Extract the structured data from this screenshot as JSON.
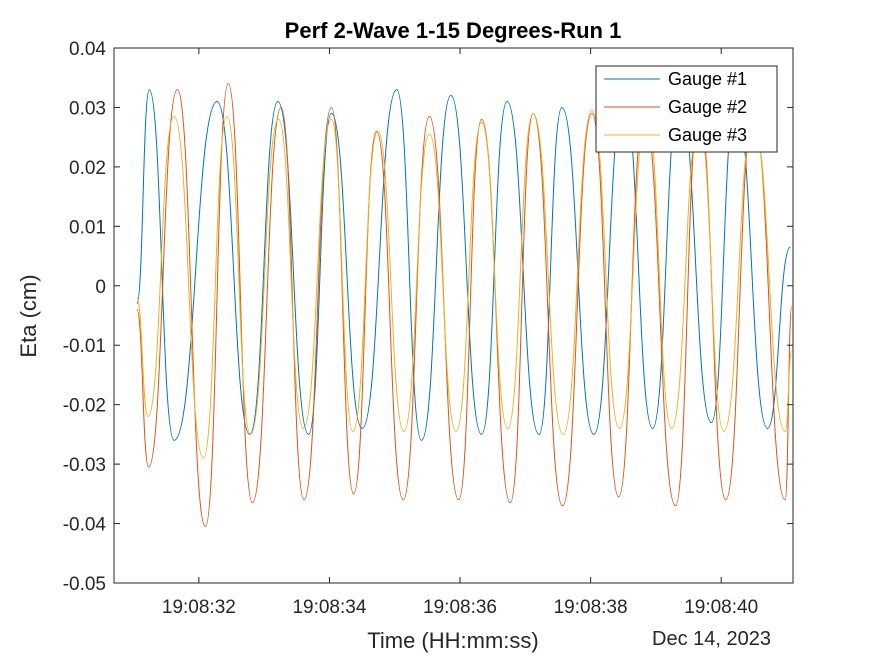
{
  "chart_data": {
    "type": "line",
    "title": "Perf 2-Wave 1-15 Degrees-Run 1",
    "xlabel": "Time (HH:mm:ss)",
    "ylabel": "Eta (cm)",
    "date_label": "Dec 14, 2023",
    "x_range": [
      "19:08:30.7",
      "19:08:41.1"
    ],
    "x_ticks": [
      "19:08:32",
      "19:08:34",
      "19:08:36",
      "19:08:38",
      "19:08:40"
    ],
    "y_ticks": [
      "-0.05",
      "-0.04",
      "-0.03",
      "-0.02",
      "-0.01",
      "0",
      "0.01",
      "0.02",
      "0.03",
      "0.04"
    ],
    "ylim": [
      -0.05,
      0.04
    ],
    "grid": false,
    "legend_position": "top-right",
    "series": [
      {
        "name": "Gauge #1",
        "color": "#0072BD",
        "points": [
          [
            "19:08:31.05",
            -0.003
          ],
          [
            "19:08:31.24",
            0.033
          ],
          [
            "19:08:31.62",
            -0.026
          ],
          [
            "19:08:32.28",
            0.031
          ],
          [
            "19:08:32.78",
            -0.025
          ],
          [
            "19:08:33.21",
            0.031
          ],
          [
            "19:08:33.68",
            -0.025
          ],
          [
            "19:08:34.03",
            0.029
          ],
          [
            "19:08:34.50",
            -0.024
          ],
          [
            "19:08:35.03",
            0.033
          ],
          [
            "19:08:35.41",
            -0.026
          ],
          [
            "19:08:35.86",
            0.032
          ],
          [
            "19:08:36.33",
            -0.025
          ],
          [
            "19:08:36.72",
            0.031
          ],
          [
            "19:08:37.21",
            -0.025
          ],
          [
            "19:08:37.56",
            0.03
          ],
          [
            "19:08:38.05",
            -0.025
          ],
          [
            "19:08:38.51",
            0.032
          ],
          [
            "19:08:38.95",
            -0.024
          ],
          [
            "19:08:39.36",
            0.032
          ],
          [
            "19:08:39.85",
            -0.023
          ],
          [
            "19:08:40.22",
            0.031
          ],
          [
            "19:08:40.71",
            -0.024
          ],
          [
            "19:08:41.06",
            0.0065
          ]
        ]
      },
      {
        "name": "Gauge #2",
        "color": "#D95319",
        "points": [
          [
            "19:08:31.05",
            -0.004
          ],
          [
            "19:08:31.23",
            -0.0305
          ],
          [
            "19:08:31.67",
            0.033
          ],
          [
            "19:08:32.10",
            -0.0405
          ],
          [
            "19:08:32.45",
            0.034
          ],
          [
            "19:08:32.82",
            -0.0365
          ],
          [
            "19:08:33.26",
            0.03
          ],
          [
            "19:08:33.61",
            -0.036
          ],
          [
            "19:08:34.03",
            0.03
          ],
          [
            "19:08:34.37",
            -0.035
          ],
          [
            "19:08:34.72",
            0.026
          ],
          [
            "19:08:35.13",
            -0.036
          ],
          [
            "19:08:35.53",
            0.0285
          ],
          [
            "19:08:35.98",
            -0.036
          ],
          [
            "19:08:36.33",
            0.028
          ],
          [
            "19:08:36.77",
            -0.0365
          ],
          [
            "19:08:37.12",
            0.029
          ],
          [
            "19:08:37.57",
            -0.037
          ],
          [
            "19:08:38.02",
            0.029
          ],
          [
            "19:08:38.43",
            -0.0355
          ],
          [
            "19:08:38.82",
            0.029
          ],
          [
            "19:08:39.30",
            -0.037
          ],
          [
            "19:08:39.66",
            0.0295
          ],
          [
            "19:08:40.07",
            -0.036
          ],
          [
            "19:08:40.49",
            0.0285
          ],
          [
            "19:08:40.98",
            -0.036
          ],
          [
            "19:08:41.08",
            -0.0035
          ]
        ]
      },
      {
        "name": "Gauge #3",
        "color": "#EDB120",
        "points": [
          [
            "19:08:31.05",
            -0.002
          ],
          [
            "19:08:31.22",
            -0.022
          ],
          [
            "19:08:31.62",
            0.0285
          ],
          [
            "19:08:32.07",
            -0.029
          ],
          [
            "19:08:32.43",
            0.0285
          ],
          [
            "19:08:32.79",
            -0.025
          ],
          [
            "19:08:33.22",
            0.028
          ],
          [
            "19:08:33.60",
            -0.024
          ],
          [
            "19:08:34.03",
            0.028
          ],
          [
            "19:08:34.36",
            -0.0245
          ],
          [
            "19:08:34.74",
            0.026
          ],
          [
            "19:08:35.14",
            -0.0245
          ],
          [
            "19:08:35.53",
            0.0255
          ],
          [
            "19:08:35.94",
            -0.0245
          ],
          [
            "19:08:36.33",
            0.0275
          ],
          [
            "19:08:36.73",
            -0.024
          ],
          [
            "19:08:37.12",
            0.029
          ],
          [
            "19:08:37.58",
            -0.025
          ],
          [
            "19:08:38.02",
            0.0295
          ],
          [
            "19:08:38.44",
            -0.024
          ],
          [
            "19:08:38.86",
            0.029
          ],
          [
            "19:08:39.24",
            -0.024
          ],
          [
            "19:08:39.66",
            0.0275
          ],
          [
            "19:08:40.04",
            -0.0245
          ],
          [
            "19:08:40.49",
            0.0275
          ],
          [
            "19:08:40.98",
            -0.0245
          ],
          [
            "19:08:41.08",
            -0.011
          ]
        ]
      }
    ]
  }
}
